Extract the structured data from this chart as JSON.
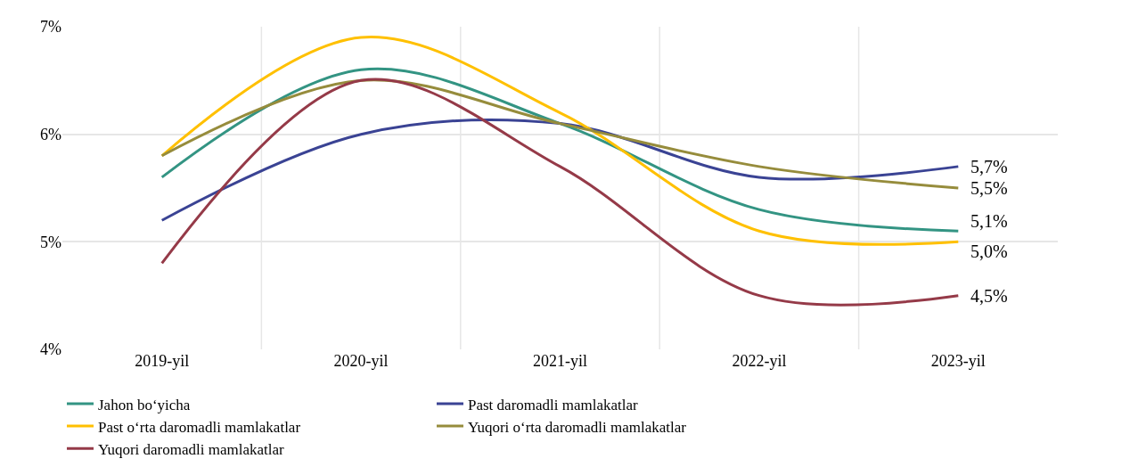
{
  "chart_data": {
    "type": "line",
    "categories": [
      "2019-yil",
      "2020-yil",
      "2021-yil",
      "2022-yil",
      "2023-yil"
    ],
    "ylim": [
      4,
      7
    ],
    "yticks": [
      {
        "value": 4,
        "label": "4%"
      },
      {
        "value": 5,
        "label": "5%"
      },
      {
        "value": 6,
        "label": "6%"
      },
      {
        "value": 7,
        "label": "7%"
      }
    ],
    "grid": true,
    "legend": "bottom",
    "marker": "none",
    "line_style": "solid",
    "series": [
      {
        "name": "Jahon bo‘yicha",
        "color": "#339483",
        "values": [
          5.6,
          6.6,
          6.1,
          5.3,
          5.1
        ],
        "value_labels": [
          null,
          null,
          null,
          null,
          "5,1%"
        ]
      },
      {
        "name": "Past daromadli mamlakatlar",
        "color": "#3a4394",
        "values": [
          5.2,
          6.0,
          6.1,
          5.6,
          5.7
        ],
        "value_labels": [
          null,
          null,
          null,
          null,
          "5,7%"
        ]
      },
      {
        "name": "Past o‘rta daromadli mamlakatlar",
        "color": "#ffc000",
        "values": [
          5.8,
          6.9,
          6.2,
          5.1,
          5.0
        ],
        "value_labels": [
          null,
          null,
          null,
          null,
          "5,0%"
        ]
      },
      {
        "name": "Yuqori o‘rta daromadli mamlakatlar",
        "color": "#968c3c",
        "values": [
          5.8,
          6.5,
          6.1,
          5.7,
          5.5
        ],
        "value_labels": [
          null,
          null,
          null,
          null,
          "5,5%"
        ]
      },
      {
        "name": "Yuqori daromadli mamlakatlar",
        "color": "#953a48",
        "values": [
          4.8,
          6.5,
          5.7,
          4.5,
          4.5
        ],
        "value_labels": [
          null,
          null,
          null,
          null,
          "4,5%"
        ]
      }
    ]
  }
}
